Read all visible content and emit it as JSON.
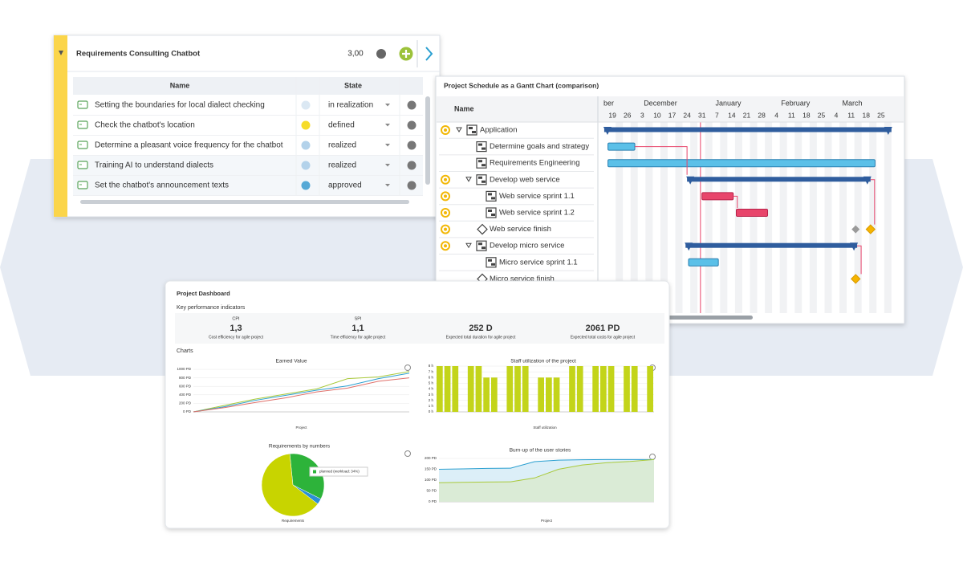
{
  "requirements": {
    "title": "Requirements Consulting Chatbot",
    "score": "3,00",
    "columns": [
      "Name",
      "State"
    ],
    "rows": [
      {
        "name": "Setting the boundaries for local dialect checking",
        "state": "in realization",
        "color": "#dbe8f3"
      },
      {
        "name": "Check the chatbot's location",
        "state": "defined",
        "color": "#f6dc2a"
      },
      {
        "name": "Determine a pleasant voice frequency for the chatbot",
        "state": "realized",
        "color": "#b3d2ea"
      },
      {
        "name": "Training AI to understand dialects",
        "state": "realized",
        "color": "#b3d2ea"
      },
      {
        "name": "Set the chatbot's announcement texts",
        "state": "approved",
        "color": "#56a9d6"
      }
    ]
  },
  "gantt": {
    "title": "Project Schedule as a Gantt Chart (comparison)",
    "name_header": "Name",
    "xlim": [
      -0.6,
      19.3
    ],
    "today": 5.9,
    "months": [
      {
        "value": -0.6,
        "label": "ber"
      },
      {
        "value": 2.1,
        "label": "December"
      },
      {
        "value": 6.9,
        "label": "January"
      },
      {
        "value": 11.3,
        "label": "February"
      },
      {
        "value": 15.4,
        "label": "March"
      }
    ],
    "xticks": [
      {
        "value": 0,
        "label": "19"
      },
      {
        "value": 1,
        "label": "26"
      },
      {
        "value": 2,
        "label": "3"
      },
      {
        "value": 3,
        "label": "10"
      },
      {
        "value": 4,
        "label": "17"
      },
      {
        "value": 5,
        "label": "24"
      },
      {
        "value": 6,
        "label": "31"
      },
      {
        "value": 7,
        "label": "7"
      },
      {
        "value": 8,
        "label": "14"
      },
      {
        "value": 9,
        "label": "21"
      },
      {
        "value": 10,
        "label": "28"
      },
      {
        "value": 11,
        "label": "4"
      },
      {
        "value": 12,
        "label": "11"
      },
      {
        "value": 13,
        "label": "18"
      },
      {
        "value": 14,
        "label": "25"
      },
      {
        "value": 15,
        "label": "4"
      },
      {
        "value": 16,
        "label": "11"
      },
      {
        "value": 17,
        "label": "18"
      },
      {
        "value": 18,
        "label": "25"
      }
    ],
    "tasks": [
      {
        "name": "Application",
        "level": 0,
        "kind": "summary",
        "flag": true,
        "start": -0.55,
        "end": 18.7
      },
      {
        "name": "Determine goals and strategy",
        "level": 1,
        "kind": "task",
        "flag": false,
        "start": -0.3,
        "end": 1.5,
        "color": "#5bc0e8"
      },
      {
        "name": "Requirements Engineering",
        "level": 1,
        "kind": "task",
        "flag": false,
        "start": -0.3,
        "end": 17.6,
        "color": "#5bc0e8"
      },
      {
        "name": "Develop web service",
        "level": 1,
        "kind": "summary",
        "flag": true,
        "start": 5.0,
        "end": 17.3
      },
      {
        "name": "Web service sprint 1.1",
        "level": 2,
        "kind": "task",
        "flag": true,
        "start": 6.0,
        "end": 8.1,
        "color": "#e8456b"
      },
      {
        "name": "Web service sprint 1.2",
        "level": 2,
        "kind": "task",
        "flag": true,
        "start": 8.3,
        "end": 10.4,
        "color": "#e8456b"
      },
      {
        "name": "Web service finish",
        "level": 1,
        "kind": "milestone",
        "flag": true,
        "milestone": 17.3,
        "baseline": 16.3
      },
      {
        "name": "Develop micro service",
        "level": 1,
        "kind": "summary",
        "flag": true,
        "start": 4.9,
        "end": 16.4
      },
      {
        "name": "Micro service sprint 1.1",
        "level": 2,
        "kind": "task",
        "flag": false,
        "start": 5.1,
        "end": 7.1,
        "color": "#5bc0e8"
      },
      {
        "name": "Micro service finish",
        "level": 1,
        "kind": "milestone",
        "flag": false,
        "milestone": 16.3
      }
    ]
  },
  "dashboard": {
    "title": "Project Dashboard",
    "kpi_header": "Key performance indicators",
    "charts_header": "Charts",
    "kpis": [
      {
        "name": "CPI",
        "value": "1,3",
        "description": "Cost efficiency for agile project",
        "color": "#8db52a"
      },
      {
        "name": "SPI",
        "value": "1,1",
        "description": "Time efficiency for agile project",
        "color": "#8db52a"
      },
      {
        "value": "252 D",
        "description": "Expected total duration for agile project",
        "color": "#1a9bc9"
      },
      {
        "value": "2061 PD",
        "description": "Expected total costs for agile project",
        "color": "#1a9bc9"
      }
    ],
    "charts": [
      {
        "type": "line",
        "title": "Earned Value",
        "xlabel": "Project",
        "ylim": [
          0,
          1000
        ],
        "yticks": [
          {
            "value": 0,
            "label": "0 PD"
          },
          {
            "value": 200,
            "label": "200 PD"
          },
          {
            "value": 400,
            "label": "400 PD"
          },
          {
            "value": 600,
            "label": "600 PD"
          },
          {
            "value": 800,
            "label": "800 PD"
          },
          {
            "value": 1000,
            "label": "1000 PD"
          }
        ],
        "series": [
          {
            "color": "#a9c93a",
            "values": [
              0,
              150,
              300,
              420,
              540,
              780,
              820,
              950
            ]
          },
          {
            "color": "#2a9fd0",
            "values": [
              0,
              120,
              270,
              390,
              510,
              610,
              780,
              910
            ]
          },
          {
            "color": "#e0706a",
            "values": [
              0,
              100,
              220,
              330,
              470,
              560,
              720,
              800
            ]
          }
        ]
      },
      {
        "type": "bar",
        "title": "Staff utilization of the project",
        "xlabel": "Staff utilization",
        "ylim": [
          0,
          8
        ],
        "color": "#c3d41a",
        "yticks": [
          {
            "value": 0,
            "label": "0 h"
          },
          {
            "value": 1,
            "label": "1 h"
          },
          {
            "value": 2,
            "label": "2 h"
          },
          {
            "value": 3,
            "label": "3 h"
          },
          {
            "value": 4,
            "label": "4 h"
          },
          {
            "value": 5,
            "label": "5 h"
          },
          {
            "value": 6,
            "label": "6 h"
          },
          {
            "value": 7,
            "label": "7 h"
          },
          {
            "value": 8,
            "label": "8 h"
          }
        ],
        "values": [
          8,
          8,
          8,
          0,
          8,
          8,
          6,
          6,
          0,
          8,
          8,
          8,
          0,
          6,
          6,
          6,
          0,
          8,
          8,
          0,
          8,
          8,
          8,
          0,
          8,
          8,
          0,
          8
        ]
      },
      {
        "type": "pie",
        "title": "Requirements by numbers",
        "xlabel": "Requirements",
        "values": [
          34,
          3,
          63
        ],
        "colors": [
          "#2db33a",
          "#2a8fd6",
          "#c8d400"
        ],
        "tooltip": "planned (workload: 34%)"
      },
      {
        "type": "area",
        "title": "Burn-up of the user stories",
        "xlabel": "Project",
        "ylim": [
          0,
          200
        ],
        "yticks": [
          {
            "value": 0,
            "label": "0 PD"
          },
          {
            "value": 50,
            "label": "50 PD"
          },
          {
            "value": 100,
            "label": "100 PD"
          },
          {
            "value": 150,
            "label": "150 PD"
          },
          {
            "value": 200,
            "label": "200 PD"
          }
        ],
        "series": [
          {
            "color": "#2a9fd0",
            "fill": "#d6ecf7",
            "values": [
              150,
              152,
              154,
              155,
              185,
              192,
              194,
              195,
              195,
              195
            ]
          },
          {
            "color": "#a9c93a",
            "fill": "#d9ead0",
            "values": [
              88,
              90,
              91,
              92,
              110,
              150,
              170,
              180,
              186,
              195
            ]
          }
        ]
      }
    ]
  }
}
